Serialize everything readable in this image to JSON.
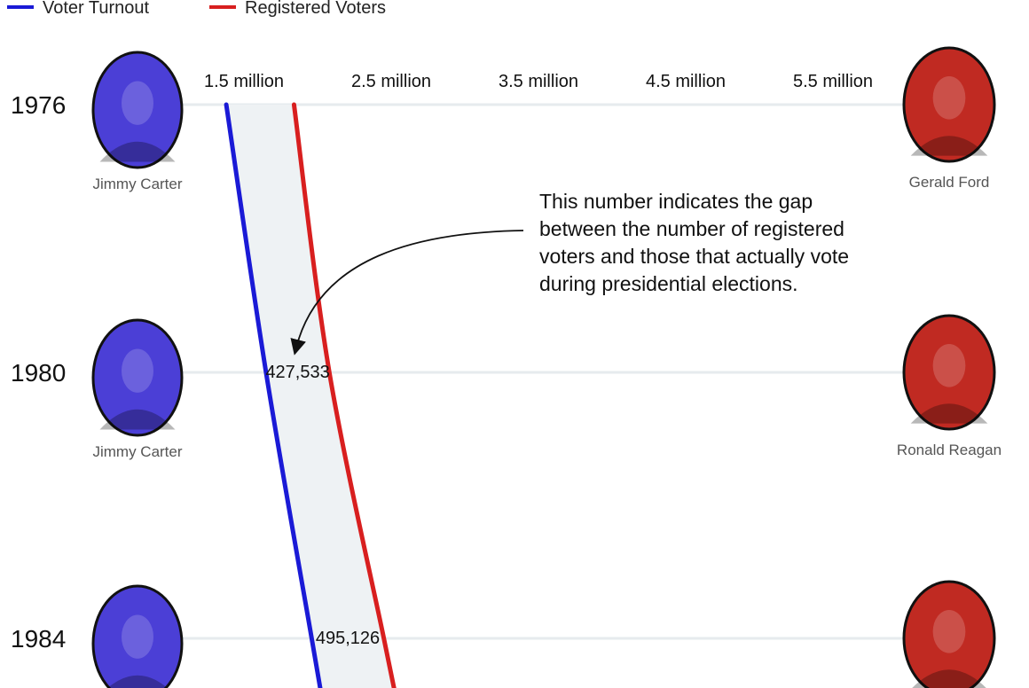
{
  "chart_data": {
    "type": "line",
    "title": "",
    "xlabel": "",
    "ylabel": "",
    "legend": {
      "placement": "top-left",
      "entries": [
        {
          "name": "Voter Turnout",
          "color": "#1a1ad6"
        },
        {
          "name": "Registered Voters",
          "color": "#d81f1f"
        }
      ]
    },
    "x_ticks": [
      "1.5 million",
      "2.5 million",
      "3.5 million",
      "4.5 million",
      "5.5 million"
    ],
    "x_tick_values": [
      1.5,
      2.5,
      3.5,
      4.5,
      5.5
    ],
    "x_units": "million voters",
    "years": [
      "1976",
      "1980",
      "1984"
    ],
    "series": [
      {
        "name": "Voter Turnout",
        "color": "#1a1ad6",
        "values": [
          1.38,
          1.65,
          1.96
        ]
      },
      {
        "name": "Registered Voters",
        "color": "#d81f1f",
        "values": [
          1.84,
          2.08,
          2.45
        ]
      }
    ],
    "gap_labels": [
      "",
      "427,533",
      "495,126"
    ],
    "left_candidates": [
      "Jimmy Carter",
      "Jimmy Carter",
      ""
    ],
    "right_candidates": [
      "Gerald Ford",
      "Ronald Reagan",
      ""
    ],
    "annotation": {
      "lines": [
        "This number indicates the gap",
        "between the number of registered",
        "voters and those that actually vote",
        "during presidential elections."
      ]
    },
    "grid": true,
    "colors": {
      "band": "#eef2f4",
      "grid": "#e6ebee",
      "dem_tint": "#4b3fd6",
      "rep_tint": "#c02a22"
    }
  }
}
